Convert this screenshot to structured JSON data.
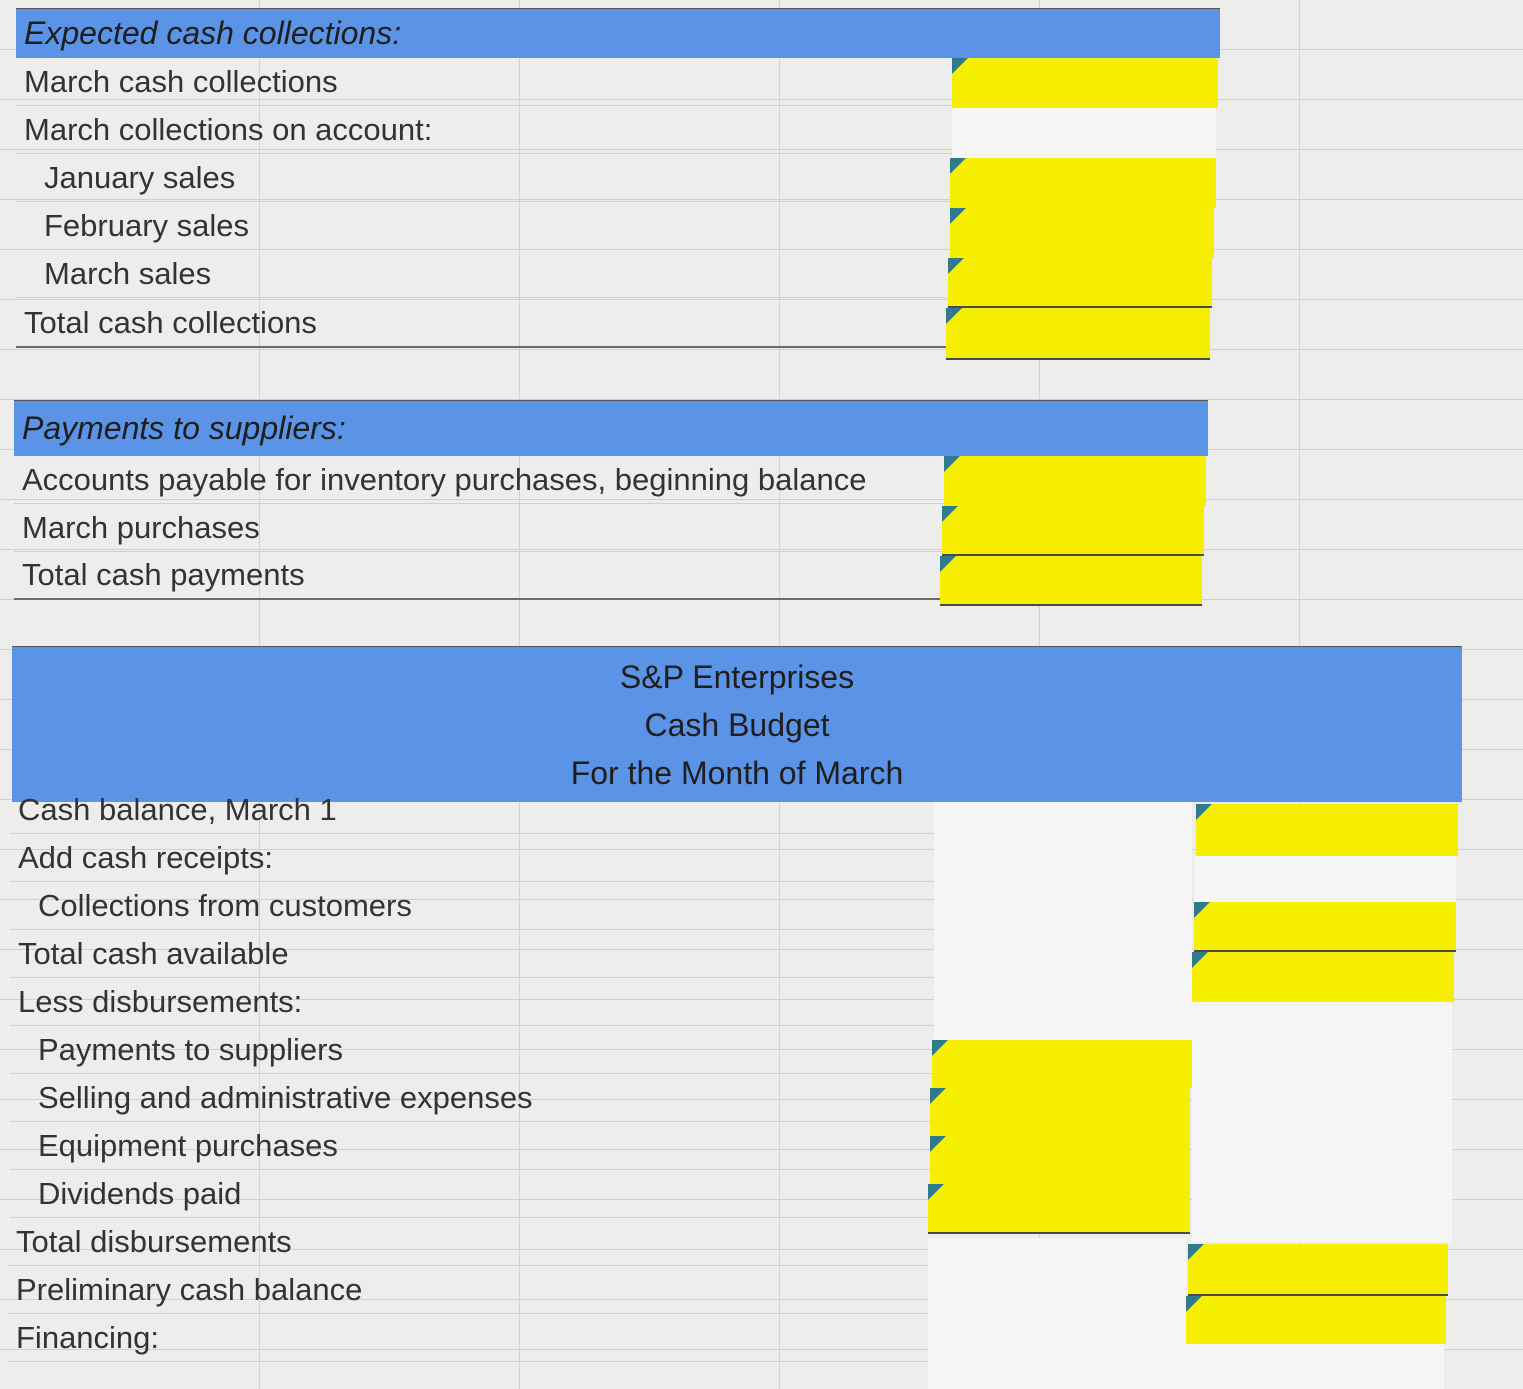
{
  "section1": {
    "header": "Expected cash collections:",
    "rows": [
      {
        "label": "March cash collections"
      },
      {
        "label": "March collections on account:"
      },
      {
        "label": "January sales"
      },
      {
        "label": "February sales"
      },
      {
        "label": "March sales"
      },
      {
        "label": "Total cash collections"
      }
    ]
  },
  "section2": {
    "header": "Payments to suppliers:",
    "rows": [
      {
        "label": "Accounts payable for inventory purchases, beginning balance"
      },
      {
        "label": "March purchases"
      },
      {
        "label": "Total cash payments"
      }
    ]
  },
  "section3": {
    "company": "S&P Enterprises",
    "report": "Cash Budget",
    "period": "For the Month of March",
    "rows": [
      {
        "label": "Cash balance, March 1"
      },
      {
        "label": "Add cash receipts:"
      },
      {
        "label": "Collections from customers"
      },
      {
        "label": "Total cash available"
      },
      {
        "label": "Less disbursements:"
      },
      {
        "label": "Payments to suppliers"
      },
      {
        "label": "Selling and administrative expenses"
      },
      {
        "label": "Equipment purchases"
      },
      {
        "label": "Dividends paid"
      },
      {
        "label": "Total disbursements"
      },
      {
        "label": "Preliminary cash balance"
      },
      {
        "label": "Financing:"
      }
    ]
  },
  "colors": {
    "header_blue": "#5b93e6",
    "input_yellow": "#f6f000",
    "indicator_teal": "#2f7a8c"
  }
}
